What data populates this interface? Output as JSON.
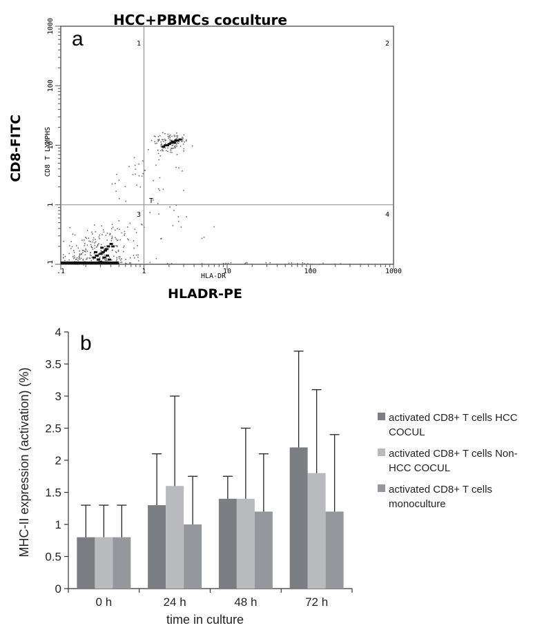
{
  "chart_data": [
    {
      "panel": "a",
      "type": "scatter",
      "title": "HCC+PBMCs coculture",
      "xlabel": "HLADR-PE",
      "ylabel": "CD8-FITC",
      "x_inner_label": "HLA-DR",
      "y_inner_label": "CD8 T LYMPHS",
      "scale": "log",
      "xlim": [
        0.1,
        1000
      ],
      "ylim": [
        0.1,
        1000
      ],
      "x_tick_labels": [
        ".1",
        "1",
        "10",
        "100",
        "1000"
      ],
      "y_tick_labels": [
        ".1",
        "1",
        "10",
        "100",
        "1000"
      ],
      "gate_marker": "T",
      "quadrants": [
        "1",
        "2",
        "3",
        "4"
      ],
      "clusters": [
        {
          "x": 0.22,
          "y": 0.115,
          "spread_x": 0.7,
          "spread_y": 0.12,
          "n": 110
        },
        {
          "x": 0.27,
          "y": 0.15,
          "spread_x": 0.45,
          "spread_y": 0.35,
          "n": 170
        },
        {
          "x": 0.4,
          "y": 0.3,
          "spread_x": 0.3,
          "spread_y": 0.25,
          "n": 40
        },
        {
          "x": 2.0,
          "y": 11.0,
          "spread_x": 0.22,
          "spread_y": 0.18,
          "n": 110
        },
        {
          "x": 0.9,
          "y": 3.0,
          "spread_x": 0.45,
          "spread_y": 0.45,
          "n": 35
        },
        {
          "x": 2.5,
          "y": 0.6,
          "spread_x": 0.5,
          "spread_y": 0.4,
          "n": 20
        },
        {
          "x": 25.0,
          "y": 0.105,
          "spread_x": 0.9,
          "spread_y": 0.02,
          "n": 30
        }
      ],
      "dense": [
        {
          "x": 1.7,
          "y": 9.5
        },
        {
          "x": 1.8,
          "y": 10.0
        },
        {
          "x": 1.9,
          "y": 10.0
        },
        {
          "x": 2.0,
          "y": 10.5
        },
        {
          "x": 2.1,
          "y": 11.0
        },
        {
          "x": 2.3,
          "y": 11.0
        },
        {
          "x": 2.5,
          "y": 12.0
        },
        {
          "x": 2.7,
          "y": 12.5
        },
        {
          "x": 2.2,
          "y": 11.5
        },
        {
          "x": 2.4,
          "y": 12.0
        },
        {
          "x": 0.25,
          "y": 0.13
        },
        {
          "x": 0.27,
          "y": 0.14
        },
        {
          "x": 0.3,
          "y": 0.15
        },
        {
          "x": 0.32,
          "y": 0.16
        },
        {
          "x": 0.35,
          "y": 0.18
        },
        {
          "x": 0.37,
          "y": 0.2
        },
        {
          "x": 0.4,
          "y": 0.22
        },
        {
          "x": 0.28,
          "y": 0.12
        },
        {
          "x": 0.33,
          "y": 0.13
        },
        {
          "x": 0.36,
          "y": 0.14
        },
        {
          "x": 0.3,
          "y": 0.11
        },
        {
          "x": 0.38,
          "y": 0.12
        },
        {
          "x": 0.42,
          "y": 0.2
        },
        {
          "x": 0.26,
          "y": 0.16
        },
        {
          "x": 0.34,
          "y": 0.17
        },
        {
          "x": 0.31,
          "y": 0.19
        }
      ],
      "baseline_band": {
        "x_start": 0.1,
        "x_end": 0.5,
        "y": 0.1
      }
    },
    {
      "panel": "b",
      "type": "bar",
      "title": "",
      "xlabel": "time in culture",
      "ylabel": "MHC-II expression (activation) (%)",
      "ylim": [
        0,
        4
      ],
      "yticks": [
        "0",
        "0.5",
        "1",
        "1.5",
        "2",
        "2.5",
        "3",
        "3.5",
        "4"
      ],
      "categories": [
        "0 h",
        "24 h",
        "48 h",
        "72 h"
      ],
      "series": [
        {
          "name": "activated CD8+ T cells HCC COCUL",
          "color": "#7a7d82",
          "values": [
            0.8,
            1.3,
            1.4,
            2.2
          ],
          "errors": [
            0.5,
            0.8,
            0.35,
            1.5
          ]
        },
        {
          "name": "activated CD8+ T cells Non-HCC COCUL",
          "color": "#b8babd",
          "values": [
            0.8,
            1.6,
            1.4,
            1.8
          ],
          "errors": [
            0.5,
            1.4,
            1.1,
            1.3
          ]
        },
        {
          "name": "activated CD8+ T cells monoculture",
          "color": "#94979b",
          "values": [
            0.8,
            1.0,
            1.2,
            1.2
          ],
          "errors": [
            0.5,
            0.75,
            0.9,
            1.2
          ]
        }
      ],
      "legend_lines": [
        [
          "activated CD8+ T cells HCC",
          "COCUL"
        ],
        [
          "activated CD8+ T cells Non-",
          "HCC COCUL"
        ],
        [
          "activated CD8+ T cells",
          "monoculture"
        ]
      ]
    }
  ]
}
